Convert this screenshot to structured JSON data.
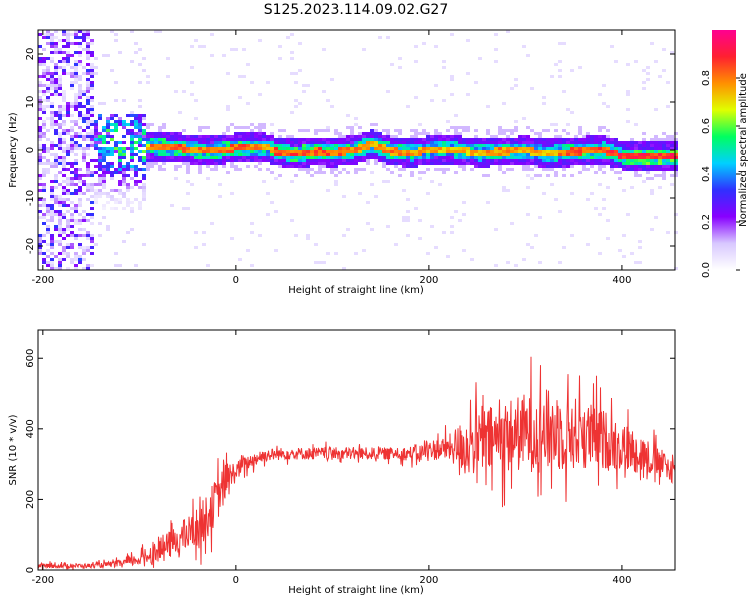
{
  "title": "S125.2023.114.09.02.G27",
  "chart_data": [
    {
      "type": "heatmap",
      "xlabel": "Height of straight line (km)",
      "ylabel": "Frequency (Hz)",
      "xlim": [
        -205,
        455
      ],
      "ylim": [
        -25,
        25
      ],
      "xticks": [
        -200,
        0,
        200,
        400
      ],
      "yticks": [
        -20,
        -10,
        0,
        10,
        20
      ],
      "colorbar": {
        "label": "Normalized spectral amplitude",
        "range": [
          0.0,
          1.0
        ],
        "ticks": [
          0.0,
          0.2,
          0.4,
          0.6,
          0.8
        ],
        "tick_labels": [
          "0.0",
          "0.2",
          "0.4",
          "0.6",
          "0.8"
        ],
        "colormap": [
          "#ffffff",
          "#d8c8ff",
          "#8800ff",
          "#3030ff",
          "#00d0ff",
          "#00ff60",
          "#e0ff00",
          "#ff9000",
          "#ff2030",
          "#ff0090"
        ]
      },
      "ridge": {
        "x": [
          -150,
          -120,
          -100,
          -90,
          -60,
          -40,
          -20,
          0,
          30,
          40,
          60,
          80,
          100,
          120,
          140,
          160,
          180,
          200,
          220,
          250,
          270,
          300,
          320,
          350,
          380,
          400,
          420,
          455
        ],
        "frequency": [
          3,
          1.5,
          1,
          1,
          0.8,
          0.2,
          0.3,
          0.8,
          0.8,
          0,
          -0.5,
          0,
          -0.2,
          0.3,
          1.5,
          0,
          -0.3,
          0.3,
          0.5,
          -0.3,
          0,
          0.2,
          -0.5,
          0,
          0.3,
          -1,
          -1,
          -1
        ],
        "amplitude": [
          0.4,
          0.5,
          0.6,
          0.85,
          0.9,
          0.85,
          0.85,
          0.9,
          0.8,
          0.9,
          0.9,
          0.9,
          0.9,
          0.85,
          0.8,
          0.85,
          0.85,
          0.8,
          0.8,
          0.8,
          0.85,
          0.8,
          0.8,
          0.9,
          0.9,
          0.95,
          0.95,
          0.95
        ]
      },
      "noise_region": {
        "x": [
          -205,
          -150
        ],
        "amplitude": 0.3
      },
      "scattered_region": {
        "x": [
          -150,
          -95
        ],
        "frequency": [
          -12,
          8
        ]
      }
    },
    {
      "type": "line",
      "xlabel": "Height of straight line (km)",
      "ylabel": "SNR (10 * v/v)",
      "xlim": [
        -205,
        455
      ],
      "ylim": [
        0,
        680
      ],
      "xticks": [
        -200,
        0,
        200,
        400
      ],
      "yticks": [
        0,
        200,
        400,
        600
      ],
      "color": "#ee3333",
      "series": [
        {
          "x": [
            -205,
            -150,
            -120,
            -100,
            -80,
            -60,
            -40,
            -30,
            -20,
            -10,
            0,
            10,
            20,
            30,
            50,
            80,
            100,
            120,
            150,
            170,
            190,
            200,
            220,
            240,
            260,
            280,
            300,
            320,
            340,
            360,
            380,
            400,
            420,
            440,
            455
          ],
          "y": [
            12,
            12,
            18,
            30,
            55,
            85,
            120,
            150,
            200,
            250,
            280,
            300,
            315,
            325,
            330,
            330,
            330,
            330,
            330,
            330,
            330,
            340,
            345,
            355,
            365,
            380,
            390,
            395,
            390,
            385,
            370,
            350,
            330,
            300,
            280
          ],
          "amplitude": [
            8,
            8,
            12,
            22,
            40,
            55,
            70,
            80,
            80,
            70,
            35,
            28,
            25,
            22,
            22,
            22,
            22,
            22,
            22,
            22,
            30,
            35,
            45,
            110,
            120,
            130,
            140,
            150,
            140,
            125,
            110,
            90,
            70,
            55,
            45
          ]
        }
      ]
    }
  ]
}
